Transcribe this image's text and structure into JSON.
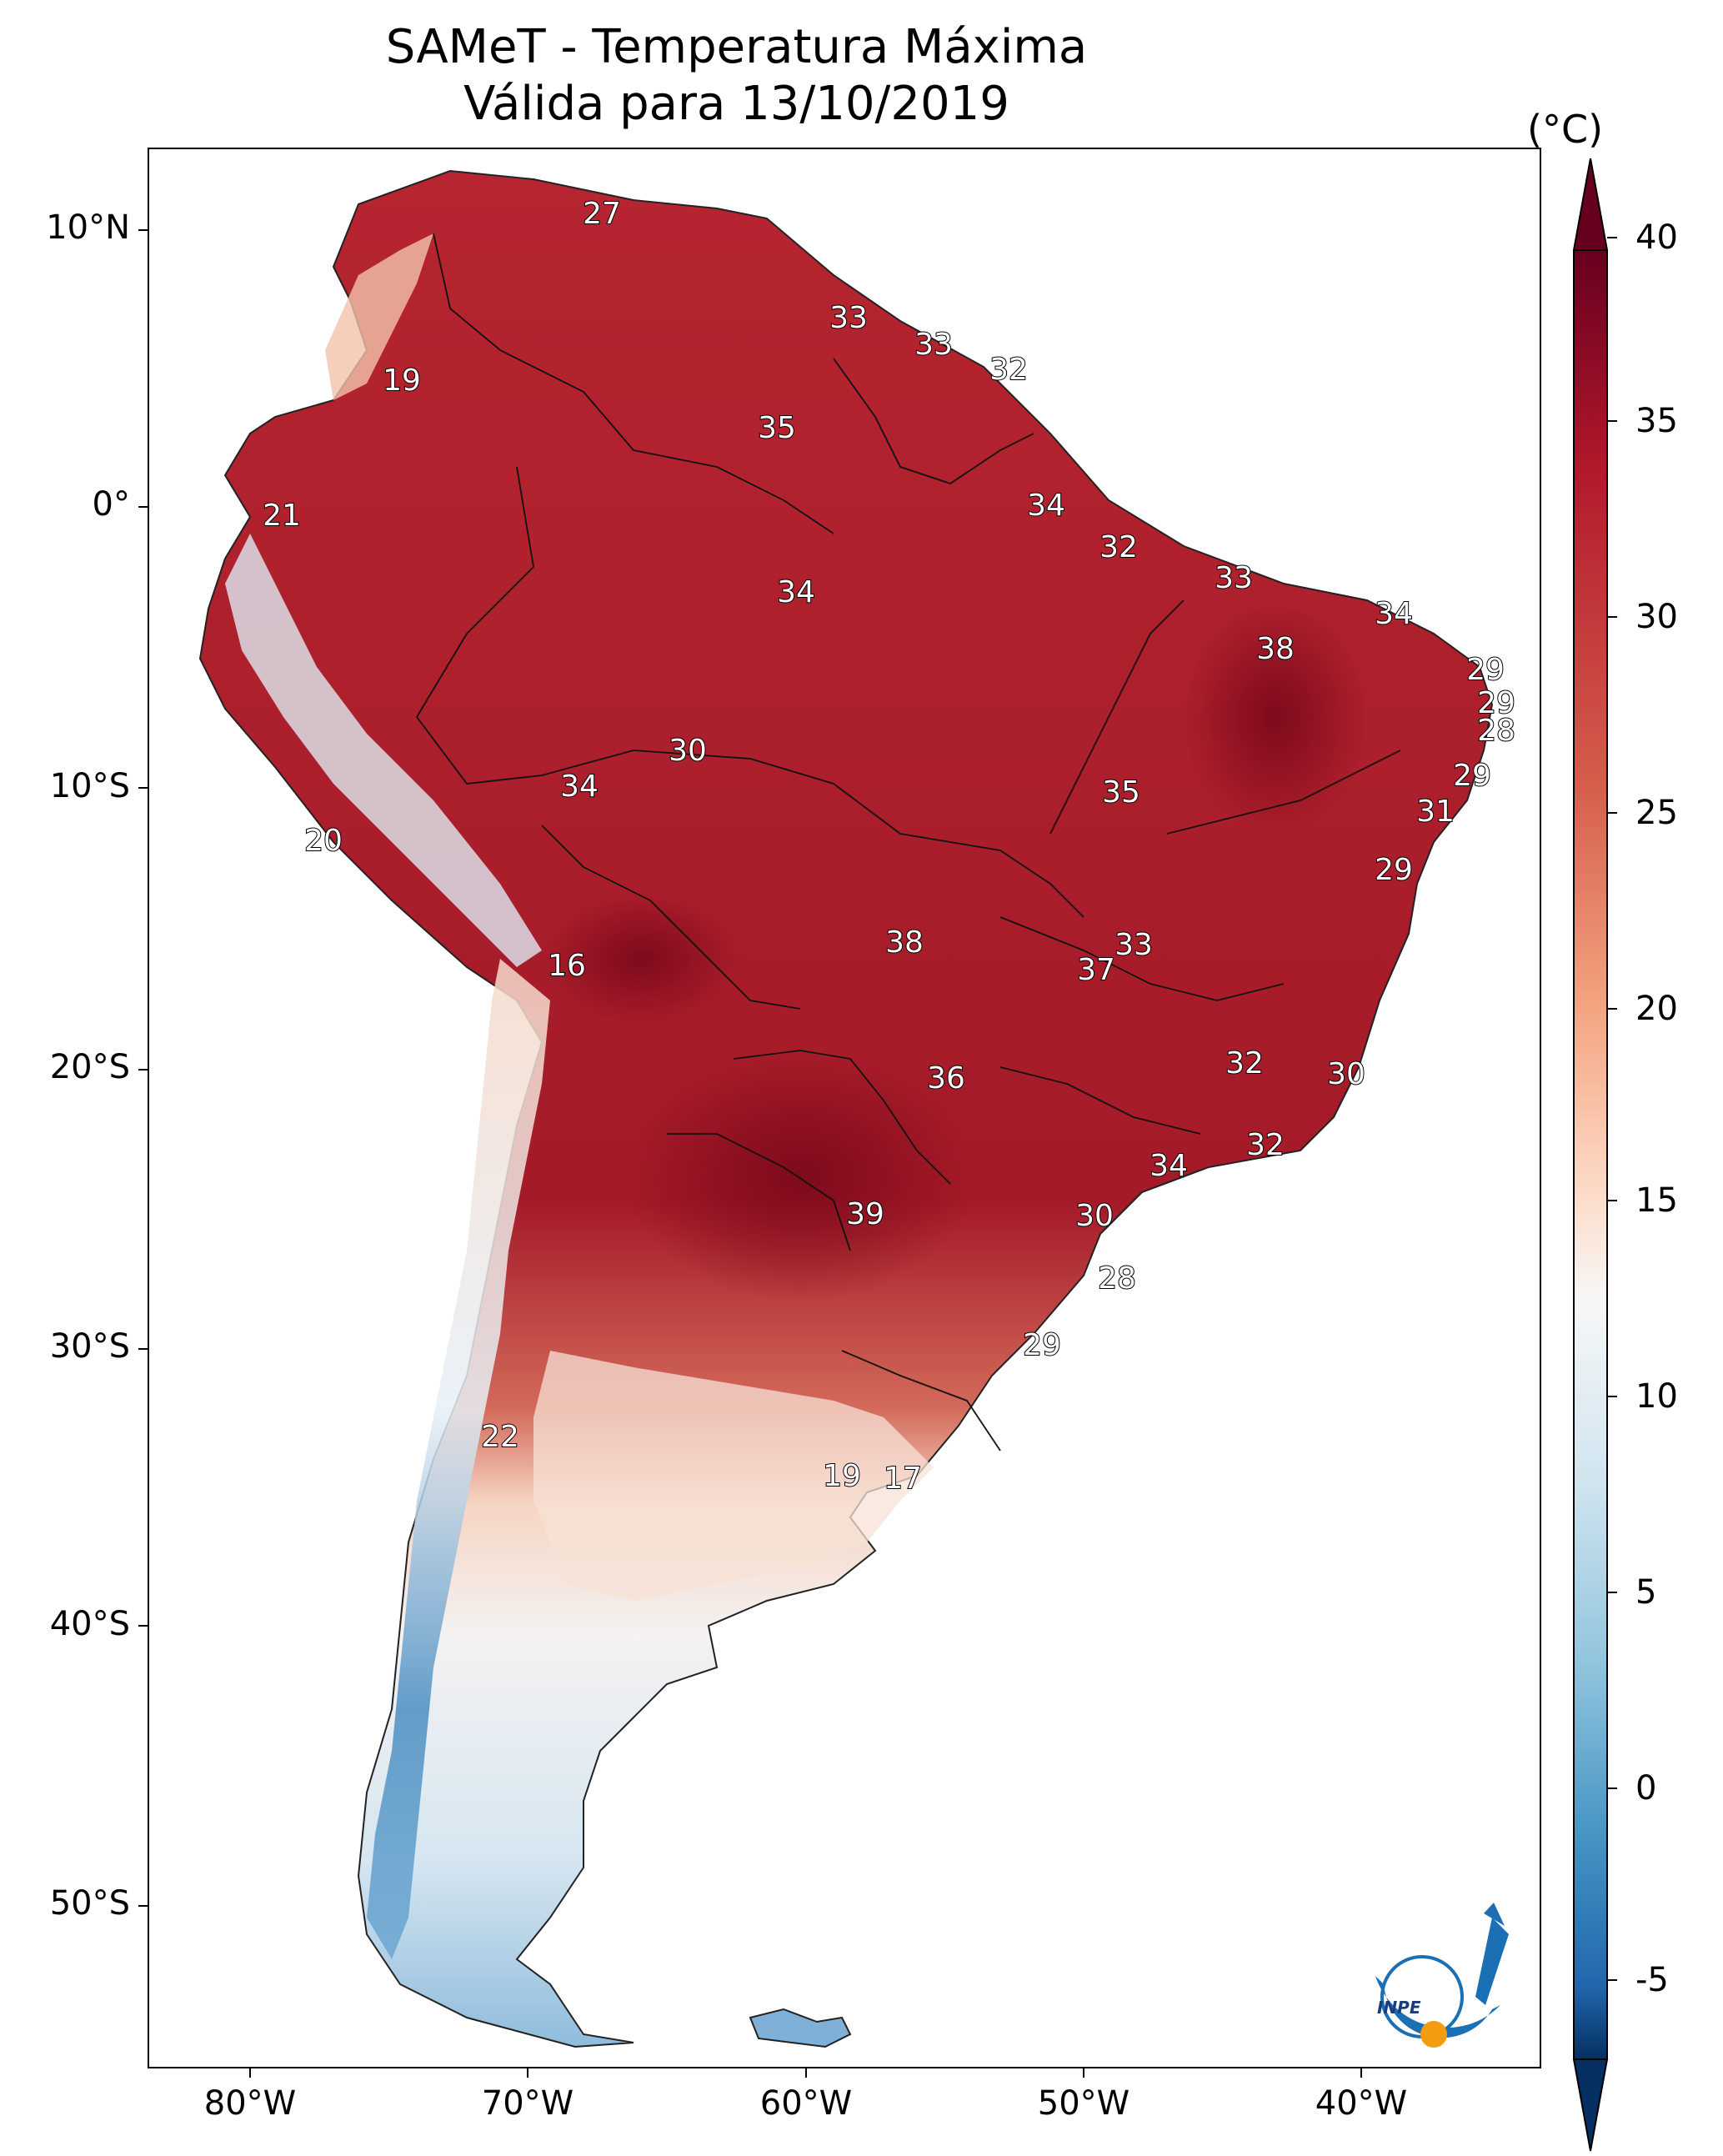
{
  "title_line1": "SAMeT - Temperatura Máxima",
  "title_line2": "Válida para 13/10/2019",
  "colorbar": {
    "unit": "(°C)",
    "ticks": [
      "40",
      "35",
      "30",
      "25",
      "20",
      "15",
      "10",
      "5",
      "0",
      "-5"
    ]
  },
  "axes": {
    "lat_ticks": [
      "10°N",
      "0°",
      "10°S",
      "20°S",
      "30°S",
      "40°S",
      "50°S"
    ],
    "lon_ticks": [
      "80°W",
      "70°W",
      "60°W",
      "50°W",
      "40°W"
    ]
  },
  "labels": [
    {
      "t": "27"
    },
    {
      "t": "33"
    },
    {
      "t": "33"
    },
    {
      "t": "32"
    },
    {
      "t": "19"
    },
    {
      "t": "35"
    },
    {
      "t": "34"
    },
    {
      "t": "21"
    },
    {
      "t": "32"
    },
    {
      "t": "34"
    },
    {
      "t": "33"
    },
    {
      "t": "34"
    },
    {
      "t": "38"
    },
    {
      "t": "29"
    },
    {
      "t": "29"
    },
    {
      "t": "28"
    },
    {
      "t": "30"
    },
    {
      "t": "29"
    },
    {
      "t": "34"
    },
    {
      "t": "35"
    },
    {
      "t": "31"
    },
    {
      "t": "20"
    },
    {
      "t": "29"
    },
    {
      "t": "38"
    },
    {
      "t": "33"
    },
    {
      "t": "16"
    },
    {
      "t": "37"
    },
    {
      "t": "32"
    },
    {
      "t": "30"
    },
    {
      "t": "36"
    },
    {
      "t": "32"
    },
    {
      "t": "34"
    },
    {
      "t": "39"
    },
    {
      "t": "30"
    },
    {
      "t": "28"
    },
    {
      "t": "29"
    },
    {
      "t": "22"
    },
    {
      "t": "19"
    },
    {
      "t": "17"
    }
  ],
  "logo_text": "INPE",
  "colors": {
    "hot": "#8b0a1e",
    "warm": "#c62a32",
    "mild": "#f2a482",
    "neutral": "#f7f4f2",
    "cool": "#c5dceb",
    "cold": "#3f7fb8"
  }
}
